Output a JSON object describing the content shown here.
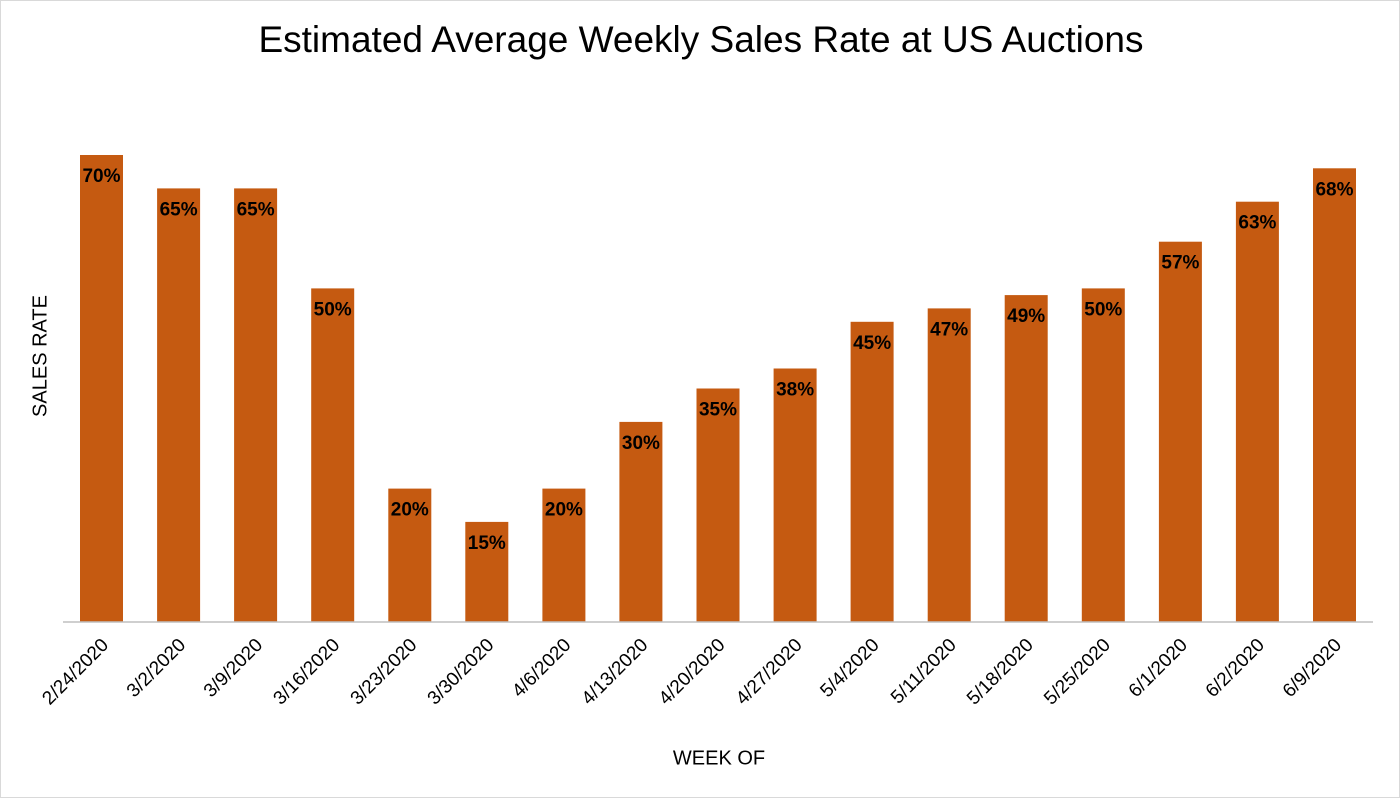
{
  "chart_data": {
    "type": "bar",
    "title": "Estimated Average Weekly Sales Rate at US Auctions",
    "xlabel": "WEEK OF",
    "ylabel": "SALES RATE",
    "categories": [
      "2/24/2020",
      "3/2/2020",
      "3/9/2020",
      "3/16/2020",
      "3/23/2020",
      "3/30/2020",
      "4/6/2020",
      "4/13/2020",
      "4/20/2020",
      "4/27/2020",
      "5/4/2020",
      "5/11/2020",
      "5/18/2020",
      "5/25/2020",
      "6/1/2020",
      "6/2/2020",
      "6/9/2020"
    ],
    "values": [
      70,
      65,
      65,
      50,
      20,
      15,
      20,
      30,
      35,
      38,
      45,
      47,
      49,
      50,
      57,
      63,
      68
    ],
    "value_suffix": "%",
    "ylim": [
      0,
      70
    ],
    "grid": false,
    "legend": "none",
    "bar_color": "#C55A11"
  }
}
